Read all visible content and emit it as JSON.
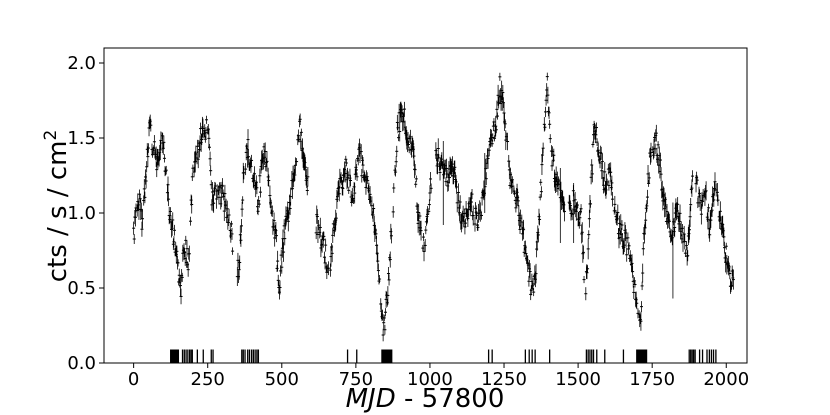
{
  "chart_data": {
    "type": "scatter",
    "xlabel_italic": "MJD",
    "xlabel_rest": " - 57800",
    "ylabel": "cts / s / cm",
    "ylabel_sup": "2",
    "xlim": [
      -100,
      2070
    ],
    "ylim": [
      0.0,
      2.1
    ],
    "xticks": [
      0,
      250,
      500,
      750,
      1000,
      1250,
      1500,
      1750,
      2000
    ],
    "yticks": [
      0.0,
      0.5,
      1.0,
      1.5,
      2.0
    ],
    "ytick_labels": [
      "0.0",
      "0.5",
      "1.0",
      "1.5",
      "2.0"
    ],
    "grid": false,
    "marker_color": "#000000",
    "anchors": [
      [
        0,
        0.82
      ],
      [
        15,
        1.1
      ],
      [
        30,
        0.95
      ],
      [
        45,
        1.35
      ],
      [
        55,
        1.6
      ],
      [
        65,
        1.45
      ],
      [
        80,
        1.35
      ],
      [
        95,
        1.5
      ],
      [
        110,
        1.3
      ],
      [
        120,
        1.0
      ],
      [
        135,
        0.85
      ],
      [
        150,
        0.65
      ],
      [
        160,
        0.5
      ],
      [
        170,
        0.8
      ],
      [
        185,
        0.65
      ],
      [
        200,
        1.25
      ],
      [
        215,
        1.4
      ],
      [
        230,
        1.55
      ],
      [
        250,
        1.55
      ],
      [
        265,
        1.1
      ],
      [
        280,
        1.15
      ],
      [
        300,
        1.1
      ],
      [
        320,
        1.0
      ],
      [
        340,
        0.75
      ],
      [
        355,
        0.6
      ],
      [
        370,
        1.2
      ],
      [
        385,
        1.45
      ],
      [
        400,
        1.3
      ],
      [
        420,
        1.05
      ],
      [
        440,
        1.45
      ],
      [
        460,
        1.1
      ],
      [
        480,
        0.85
      ],
      [
        490,
        0.5
      ],
      [
        505,
        0.8
      ],
      [
        520,
        1.0
      ],
      [
        540,
        1.2
      ],
      [
        560,
        1.6
      ],
      [
        580,
        1.3
      ],
      [
        600,
        1.0
      ],
      [
        620,
        0.9
      ],
      [
        640,
        0.8
      ],
      [
        660,
        0.6
      ],
      [
        680,
        1.0
      ],
      [
        700,
        1.2
      ],
      [
        720,
        1.3
      ],
      [
        740,
        1.05
      ],
      [
        760,
        1.4
      ],
      [
        780,
        1.25
      ],
      [
        800,
        1.15
      ],
      [
        820,
        0.75
      ],
      [
        835,
        0.4
      ],
      [
        845,
        0.2
      ],
      [
        860,
        0.55
      ],
      [
        875,
        1.05
      ],
      [
        890,
        1.55
      ],
      [
        910,
        1.7
      ],
      [
        925,
        1.5
      ],
      [
        945,
        1.4
      ],
      [
        960,
        1.0
      ],
      [
        980,
        0.75
      ],
      [
        1000,
        1.15
      ],
      [
        1020,
        1.4
      ],
      [
        1040,
        1.3
      ],
      [
        1060,
        1.2
      ],
      [
        1080,
        1.3
      ],
      [
        1100,
        1.0
      ],
      [
        1120,
        0.95
      ],
      [
        1140,
        1.1
      ],
      [
        1160,
        0.9
      ],
      [
        1180,
        1.1
      ],
      [
        1200,
        1.45
      ],
      [
        1220,
        1.55
      ],
      [
        1235,
        1.85
      ],
      [
        1250,
        1.7
      ],
      [
        1270,
        1.2
      ],
      [
        1290,
        1.1
      ],
      [
        1310,
        0.9
      ],
      [
        1330,
        0.6
      ],
      [
        1350,
        0.45
      ],
      [
        1365,
        0.85
      ],
      [
        1380,
        1.35
      ],
      [
        1395,
        1.9
      ],
      [
        1410,
        1.4
      ],
      [
        1430,
        1.2
      ],
      [
        1450,
        1.05
      ],
      [
        1470,
        1.0
      ],
      [
        1490,
        1.1
      ],
      [
        1510,
        0.95
      ],
      [
        1525,
        0.45
      ],
      [
        1540,
        1.0
      ],
      [
        1555,
        1.6
      ],
      [
        1570,
        1.4
      ],
      [
        1590,
        1.2
      ],
      [
        1610,
        1.25
      ],
      [
        1630,
        0.95
      ],
      [
        1650,
        0.85
      ],
      [
        1670,
        0.75
      ],
      [
        1690,
        0.5
      ],
      [
        1710,
        0.25
      ],
      [
        1725,
        0.95
      ],
      [
        1740,
        1.3
      ],
      [
        1760,
        1.5
      ],
      [
        1775,
        1.35
      ],
      [
        1795,
        1.0
      ],
      [
        1815,
        0.8
      ],
      [
        1835,
        1.05
      ],
      [
        1855,
        0.85
      ],
      [
        1870,
        0.75
      ],
      [
        1885,
        1.25
      ],
      [
        1900,
        1.2
      ],
      [
        1915,
        1.0
      ],
      [
        1930,
        1.15
      ],
      [
        1945,
        0.9
      ],
      [
        1960,
        1.15
      ],
      [
        1980,
        1.0
      ],
      [
        1995,
        0.75
      ],
      [
        2010,
        0.6
      ],
      [
        2025,
        0.5
      ]
    ],
    "gaps": [
      [
        335,
        348
      ],
      [
        590,
        615
      ],
      [
        1005,
        1018
      ],
      [
        1455,
        1468
      ],
      [
        1890,
        1897
      ]
    ],
    "observation_ticks": [
      125,
      128,
      130,
      133,
      136,
      139,
      142,
      145,
      148,
      151,
      165,
      171,
      177,
      183,
      189,
      194,
      198,
      215,
      235,
      262,
      268,
      365,
      370,
      376,
      385,
      391,
      398,
      404,
      410,
      416,
      421,
      722,
      753,
      838,
      841,
      844,
      847,
      850,
      853,
      856,
      859,
      862,
      865,
      868,
      871,
      1198,
      1210,
      1322,
      1335,
      1345,
      1355,
      1404,
      1528,
      1534,
      1540,
      1546,
      1552,
      1563,
      1590,
      1653,
      1698,
      1701,
      1704,
      1707,
      1710,
      1713,
      1716,
      1719,
      1722,
      1725,
      1728,
      1731,
      1875,
      1880,
      1885,
      1890,
      1895,
      1910,
      1920,
      1935,
      1943,
      1950,
      1957,
      1965
    ],
    "tick_height": 0.09
  }
}
